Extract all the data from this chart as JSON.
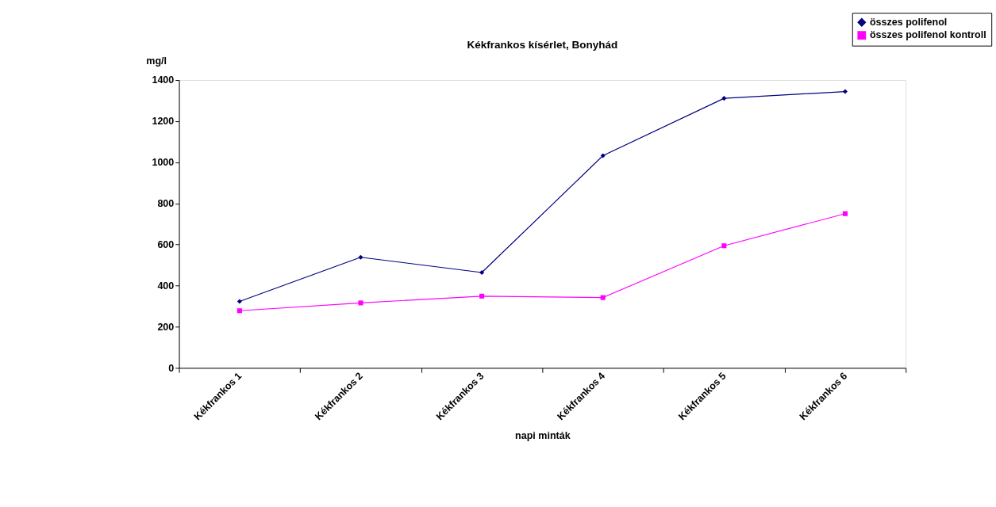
{
  "chart_data": {
    "type": "line",
    "title": "Kékfrankos kísérlet, Bonyhád",
    "ylabel": "mg/l",
    "xlabel": "napi minták",
    "categories": [
      "Kékfrankos 1",
      "Kékfrankos 2",
      "Kékfrankos 3",
      "Kékfrankos 4",
      "Kékfrankos 5",
      "Kékfrankos 6"
    ],
    "series": [
      {
        "name": "összes polifenol",
        "color": "#000080",
        "marker": "diamond",
        "values": [
          323,
          538,
          464,
          1032,
          1311,
          1344
        ]
      },
      {
        "name": "összes polifenol kontroll",
        "color": "#ff00ff",
        "marker": "square",
        "values": [
          278,
          316,
          349,
          342,
          594,
          750
        ]
      }
    ],
    "ylim": [
      0,
      1400
    ],
    "yticks": [
      0,
      200,
      400,
      600,
      800,
      1000,
      1200,
      1400
    ],
    "grid": false,
    "legend": "top right"
  }
}
